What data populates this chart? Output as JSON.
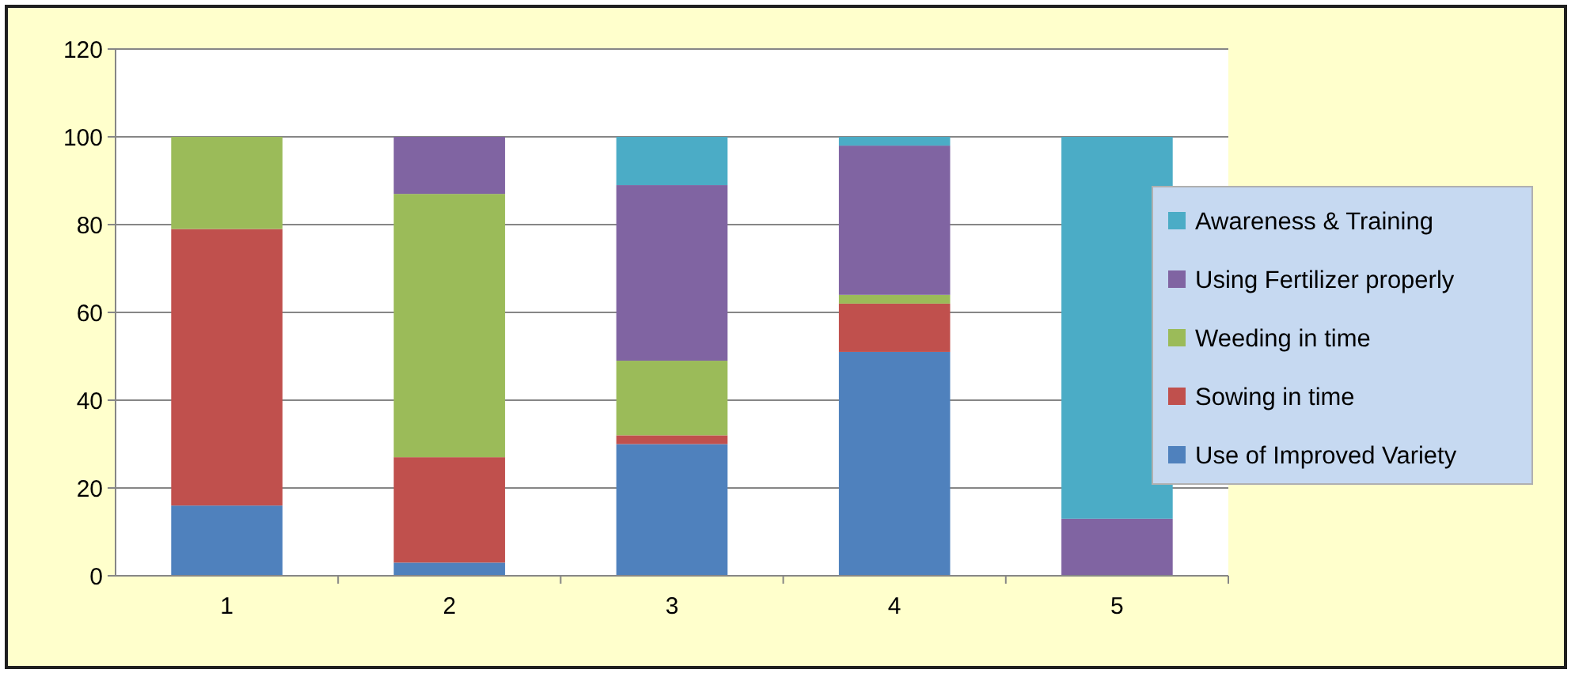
{
  "chart_data": {
    "type": "bar",
    "stacked": true,
    "categories": [
      "1",
      "2",
      "3",
      "4",
      "5"
    ],
    "series": [
      {
        "name": "Use of Improved Variety",
        "color": "#4f81bd",
        "values": [
          16,
          3,
          30,
          51,
          0
        ]
      },
      {
        "name": "Sowing in time",
        "color": "#c0504d",
        "values": [
          63,
          24,
          2,
          11,
          0
        ]
      },
      {
        "name": "Weeding in time",
        "color": "#9bbb59",
        "values": [
          21,
          60,
          17,
          2,
          0
        ]
      },
      {
        "name": "Using Fertilizer properly",
        "color": "#8064a2",
        "values": [
          0,
          13,
          40,
          34,
          13
        ]
      },
      {
        "name": "Awareness & Training",
        "color": "#4bacc6",
        "values": [
          0,
          0,
          11,
          2,
          87
        ]
      }
    ],
    "ylim": [
      0,
      120
    ],
    "yticks": [
      0,
      20,
      40,
      60,
      80,
      100,
      120
    ],
    "grid": "y",
    "legend": "right"
  }
}
